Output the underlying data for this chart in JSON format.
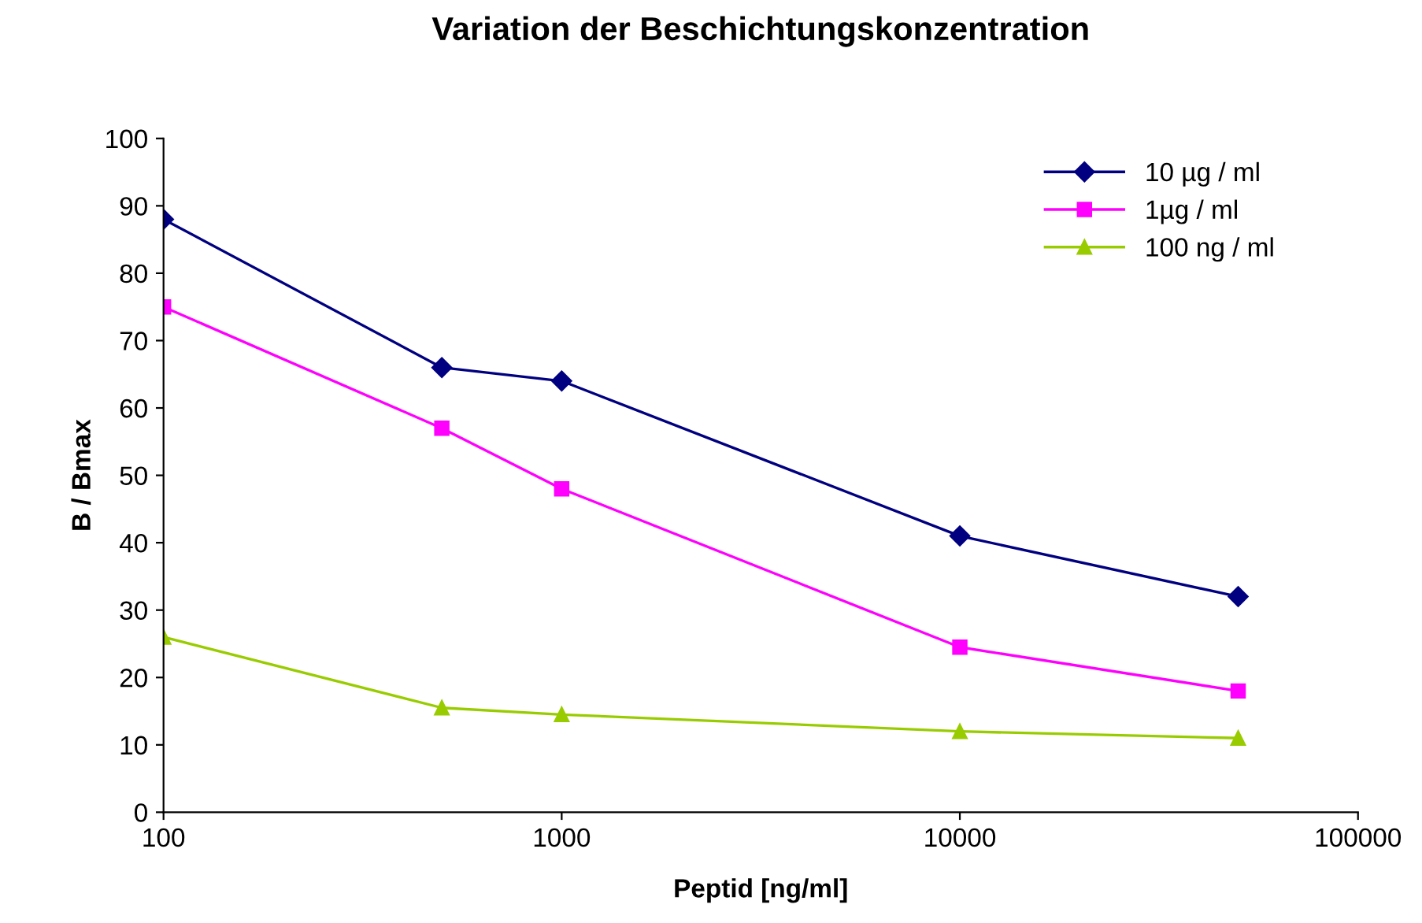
{
  "chart_data": {
    "type": "line",
    "title": "Variation der Beschichtungskonzentration",
    "xlabel": "Peptid [ng/ml]",
    "ylabel": "B / Bmax",
    "x": [
      100,
      500,
      1000,
      10000,
      50000
    ],
    "series": [
      {
        "name": "10 µg / ml",
        "color": "#000080",
        "marker": "diamond",
        "values": [
          88,
          66,
          64,
          41,
          32
        ]
      },
      {
        "name": "1µg / ml",
        "color": "#ff00ff",
        "marker": "square",
        "values": [
          75,
          57,
          48,
          24.5,
          18
        ]
      },
      {
        "name": "100 ng / ml",
        "color": "#99cc00",
        "marker": "triangle",
        "values": [
          26,
          15.5,
          14.5,
          12,
          11
        ]
      }
    ],
    "log": "x",
    "xlim": [
      100,
      100000
    ],
    "xticks": [
      100,
      1000,
      10000,
      100000
    ],
    "ylim": [
      0,
      100
    ],
    "yticks": [
      0,
      10,
      20,
      30,
      40,
      50,
      60,
      70,
      80,
      90,
      100
    ],
    "grid": false,
    "legend": "top right",
    "line_style": "solid"
  }
}
